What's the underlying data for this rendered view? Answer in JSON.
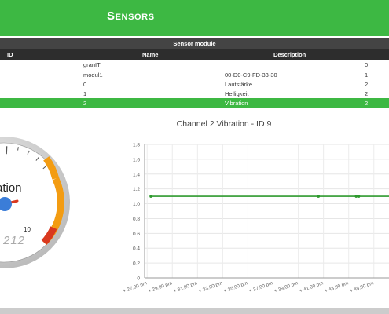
{
  "header": {
    "title": "Sensors"
  },
  "sensor_module": {
    "title": "Sensor module",
    "columns": [
      "ID",
      "Name",
      "Description"
    ],
    "rows": [
      {
        "name": "granIT",
        "description": "",
        "value": "0"
      },
      {
        "name": "modul1",
        "description": "00-D0-C9-FD-33-30",
        "value": "1"
      },
      {
        "name": "0",
        "description": "Lautstärke",
        "value": "2"
      },
      {
        "name": "1",
        "description": "Helligkeit",
        "value": "2"
      },
      {
        "name": "2",
        "description": "Vibration",
        "value": "2",
        "selected": true
      }
    ]
  },
  "gauge": {
    "label": "ration",
    "max_label": "10",
    "digits": "212",
    "colors": {
      "orange": "#f39c12",
      "red": "#d9391f",
      "needle": "#d9391f",
      "hub": "#3b7dd8"
    }
  },
  "chart_data": {
    "type": "line",
    "title": "Channel 2 Vibration - ID 9",
    "ylim": [
      0,
      1.8
    ],
    "yticks": [
      "0",
      "0.2",
      "0.4",
      "0.6",
      "0.8",
      "1.0",
      "1.2",
      "1.4",
      "1.6",
      "1.8"
    ],
    "xtick_labels": [
      "27:00 pm",
      "29:00 pm",
      "31:00 pm",
      "33:00 pm",
      "35:00 pm",
      "37:00 pm",
      "39:00 pm",
      "41:00 pm",
      "43:00 pm",
      "45:00 pm"
    ],
    "series": [
      {
        "color": "#2e9a2e",
        "x": [
          27.3,
          40.6,
          43.6,
          43.8
        ],
        "y": [
          1.1,
          1.1,
          1.1,
          1.1
        ]
      }
    ],
    "grid": true
  }
}
